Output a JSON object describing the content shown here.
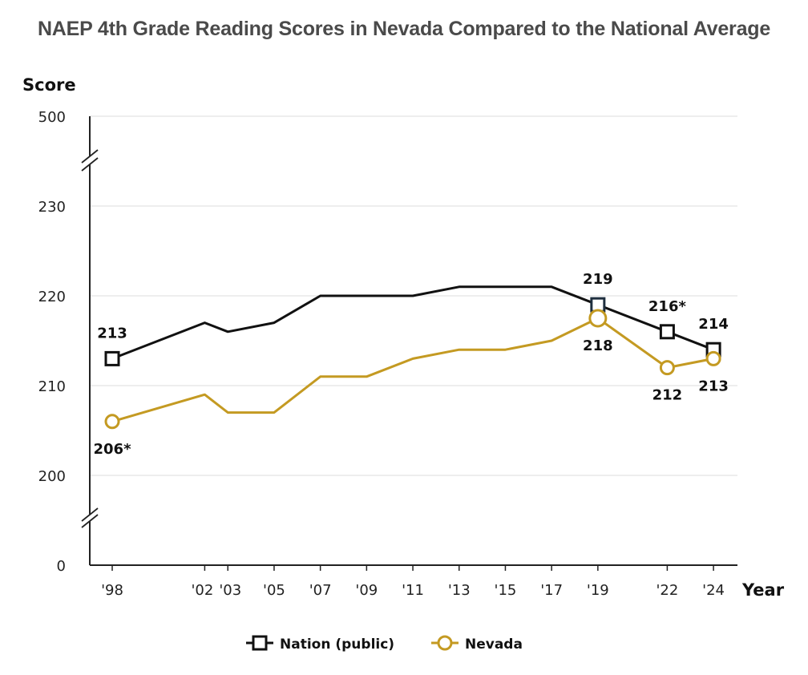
{
  "chart_data": {
    "type": "line",
    "title": "NAEP 4th Grade Reading Scores in Nevada Compared to the National Average",
    "ylabel": "Score",
    "xlabel": "Year",
    "y_ticks": [
      0,
      200,
      210,
      220,
      230,
      500
    ],
    "y_tick_labels": [
      "0",
      "200",
      "210",
      "220",
      "230",
      "500"
    ],
    "ylim_visible": [
      195,
      235
    ],
    "x_ticks": [
      {
        "year": 1998,
        "label": "'98"
      },
      {
        "year": 2002,
        "label": "'02"
      },
      {
        "year": 2003,
        "label": "'03"
      },
      {
        "year": 2005,
        "label": "'05"
      },
      {
        "year": 2007,
        "label": "'07"
      },
      {
        "year": 2009,
        "label": "'09"
      },
      {
        "year": 2011,
        "label": "'11"
      },
      {
        "year": 2013,
        "label": "'13"
      },
      {
        "year": 2015,
        "label": "'15"
      },
      {
        "year": 2017,
        "label": "'17"
      },
      {
        "year": 2019,
        "label": "'19"
      },
      {
        "year": 2022,
        "label": "'22"
      },
      {
        "year": 2024,
        "label": "'24"
      }
    ],
    "series": [
      {
        "name": "Nation (public)",
        "color": "#111111",
        "marker": "square",
        "x": [
          1998,
          2002,
          2003,
          2005,
          2007,
          2009,
          2011,
          2013,
          2015,
          2017,
          2019,
          2022,
          2024
        ],
        "values": [
          213,
          217,
          216,
          217,
          220,
          220,
          220,
          221,
          221,
          221,
          219,
          216,
          214
        ],
        "labeled_points": [
          {
            "x": 1998,
            "label": "213",
            "pos": "above"
          },
          {
            "x": 2019,
            "label": "219",
            "pos": "above"
          },
          {
            "x": 2022,
            "label": "216*",
            "pos": "above"
          },
          {
            "x": 2024,
            "label": "214",
            "pos": "above"
          }
        ]
      },
      {
        "name": "Nevada",
        "color": "#c49a22",
        "marker": "circle",
        "x": [
          1998,
          2002,
          2003,
          2005,
          2007,
          2009,
          2011,
          2013,
          2015,
          2017,
          2019,
          2022,
          2024
        ],
        "values": [
          206,
          209,
          207,
          207,
          211,
          211,
          213,
          214,
          214,
          215,
          217.5,
          212,
          213
        ],
        "labeled_points": [
          {
            "x": 1998,
            "label": "206*",
            "pos": "below"
          },
          {
            "x": 2019,
            "label": "218",
            "pos": "below"
          },
          {
            "x": 2022,
            "label": "212",
            "pos": "below"
          },
          {
            "x": 2024,
            "label": "213",
            "pos": "below"
          }
        ]
      }
    ],
    "legend": {
      "placement": "bottom-center",
      "entries": [
        "Nation (public)",
        "Nevada"
      ]
    }
  }
}
